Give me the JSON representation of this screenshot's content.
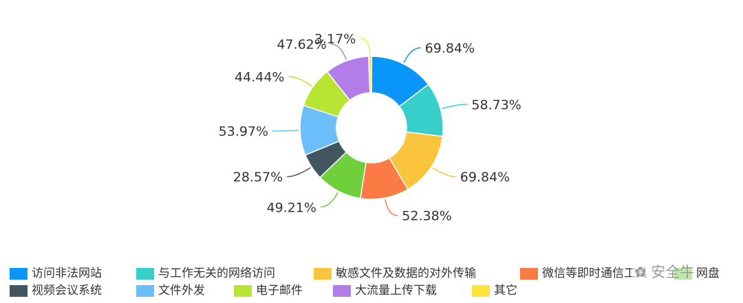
{
  "chart_data": {
    "type": "donut",
    "categories": [
      "访问非法网站",
      "与工作无关的网络访问",
      "敏感文件及数据的对外传输",
      "微信等即时通信工具",
      "网盘",
      "视频会议系统",
      "文件外发",
      "电子邮件",
      "大流量上传下载",
      "其它"
    ],
    "values": [
      69.84,
      58.73,
      69.84,
      52.38,
      49.21,
      28.57,
      53.97,
      44.44,
      47.62,
      3.17
    ],
    "labels": [
      "69.84%",
      "58.73%",
      "69.84%",
      "52.38%",
      "49.21%",
      "28.57%",
      "53.97%",
      "44.44%",
      "47.62%",
      "3.17%"
    ],
    "colors": [
      "#0a95f9",
      "#38cfca",
      "#fbc43d",
      "#fc7b45",
      "#6fd03c",
      "#425661",
      "#6bbff9",
      "#b8e434",
      "#b27de9",
      "#fbe43d"
    ],
    "legend_position": "bottom"
  },
  "watermark": "安全牛"
}
